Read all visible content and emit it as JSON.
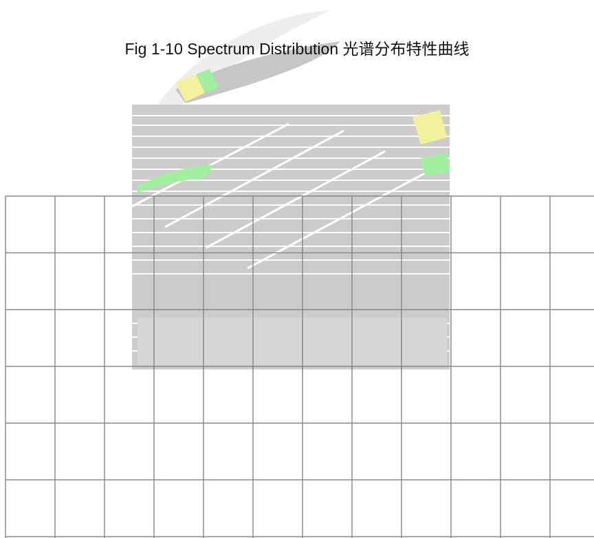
{
  "chart_data": {
    "type": "line",
    "title": "Fig 1-10 Spectrum Distribution 光谱分布特性曲线",
    "xlabel": "",
    "ylabel": "",
    "series": [],
    "grid": true,
    "grid_columns": 12,
    "grid_rows": 7,
    "grid_color": "#888888"
  },
  "watermark": {
    "colors": [
      "#bdbdbd",
      "#90ee90",
      "#f0f08c",
      "#e3e3e3",
      "#bfe8ff"
    ]
  }
}
